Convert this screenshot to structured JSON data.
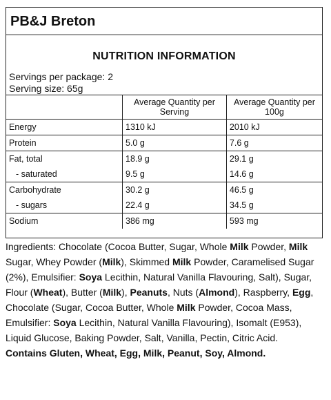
{
  "product_title": "PB&J Breton",
  "panel_heading": "NUTRITION INFORMATION",
  "servings_per_package": "Servings per package: 2",
  "serving_size": "Serving size: 65g",
  "table": {
    "col_per_serving": "Average Quantity per Serving",
    "col_per_100g": "Average Quantity per 100g",
    "rows": [
      {
        "label": "Energy",
        "per_serving": "1310 kJ",
        "per_100g": "2010 kJ"
      },
      {
        "label": "Protein",
        "per_serving": "5.0 g",
        "per_100g": "7.6 g"
      },
      {
        "label": "Fat, total",
        "per_serving": "18.9 g",
        "per_100g": "29.1 g"
      },
      {
        "label": "- saturated",
        "per_serving": "9.5 g",
        "per_100g": "14.6 g"
      },
      {
        "label": "Carbohydrate",
        "per_serving": "30.2 g",
        "per_100g": "46.5 g"
      },
      {
        "label": "- sugars",
        "per_serving": "22.4 g",
        "per_100g": "34.5 g"
      },
      {
        "label": "Sodium",
        "per_serving": "386 mg",
        "per_100g": "593 mg"
      }
    ]
  },
  "ingredients": [
    {
      "t": "Ingredients: Chocolate (Cocoa Butter, Sugar, Whole ",
      "b": false
    },
    {
      "t": "Milk",
      "b": true
    },
    {
      "t": " Powder, ",
      "b": false
    },
    {
      "t": "Milk",
      "b": true
    },
    {
      "t": " Sugar, Whey Powder (",
      "b": false
    },
    {
      "t": "Milk",
      "b": true
    },
    {
      "t": "), Skimmed ",
      "b": false
    },
    {
      "t": "Milk",
      "b": true
    },
    {
      "t": " Powder, Caramelised Sugar (2%), Emulsifier: ",
      "b": false
    },
    {
      "t": "Soya",
      "b": true
    },
    {
      "t": " Lecithin, Natural Vanilla Flavouring, Salt), Sugar, Flour (",
      "b": false
    },
    {
      "t": "Wheat",
      "b": true
    },
    {
      "t": "), Butter (",
      "b": false
    },
    {
      "t": "Milk",
      "b": true
    },
    {
      "t": "), ",
      "b": false
    },
    {
      "t": "Peanuts",
      "b": true
    },
    {
      "t": ", Nuts (",
      "b": false
    },
    {
      "t": "Almond",
      "b": true
    },
    {
      "t": "), Raspberry, ",
      "b": false
    },
    {
      "t": "Egg",
      "b": true
    },
    {
      "t": ", Chocolate (Sugar, Cocoa Butter, Whole ",
      "b": false
    },
    {
      "t": "Milk",
      "b": true
    },
    {
      "t": " Powder, Cocoa Mass, Emulsifier: ",
      "b": false
    },
    {
      "t": "Soya",
      "b": true
    },
    {
      "t": " Lecithin, Natural Vanilla Flavouring), Isomalt (E953), Liquid Glucose, Baking Powder, Salt, Vanilla, Pectin, Citric Acid.",
      "b": false
    }
  ],
  "allergen_statement": "Contains Gluten, Wheat, Egg, Milk, Peanut, Soy, Almond."
}
